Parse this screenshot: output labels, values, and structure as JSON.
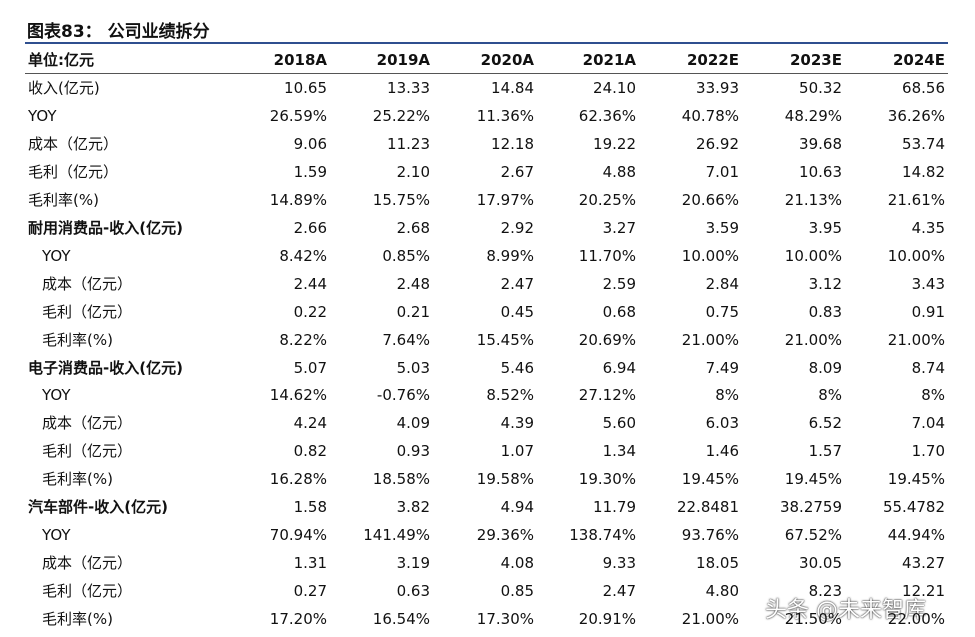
{
  "header": {
    "title": "图表83：  公司业绩拆分"
  },
  "table": {
    "header": [
      "单位:亿元",
      "2018A",
      "2019A",
      "2020A",
      "2021A",
      "2022E",
      "2023E",
      "2024E"
    ],
    "summary_rows": [
      [
        "收入(亿元)",
        "10.65",
        "13.33",
        "14.84",
        "24.10",
        "33.93",
        "50.32",
        "68.56"
      ],
      [
        "YOY",
        "26.59%",
        "25.22%",
        "11.36%",
        "62.36%",
        "40.78%",
        "48.29%",
        "36.26%"
      ],
      [
        "成本（亿元）",
        "9.06",
        "11.23",
        "12.18",
        "19.22",
        "26.92",
        "39.68",
        "53.74"
      ],
      [
        "毛利（亿元）",
        "1.59",
        "2.10",
        "2.67",
        "4.88",
        "7.01",
        "10.63",
        "14.82"
      ],
      [
        "毛利率(%)",
        "14.89%",
        "15.75%",
        "17.97%",
        "20.25%",
        "20.66%",
        "21.13%",
        "21.61%"
      ]
    ],
    "segments": [
      {
        "row": [
          "耐用消费品-收入(亿元)",
          "2.66",
          "2.68",
          "2.92",
          "3.27",
          "3.59",
          "3.95",
          "4.35"
        ],
        "sub_rows": [
          [
            "YOY",
            "8.42%",
            "0.85%",
            "8.99%",
            "11.70%",
            "10.00%",
            "10.00%",
            "10.00%"
          ],
          [
            "成本（亿元）",
            "2.44",
            "2.48",
            "2.47",
            "2.59",
            "2.84",
            "3.12",
            "3.43"
          ],
          [
            "毛利（亿元）",
            "0.22",
            "0.21",
            "0.45",
            "0.68",
            "0.75",
            "0.83",
            "0.91"
          ],
          [
            "毛利率(%)",
            "8.22%",
            "7.64%",
            "15.45%",
            "20.69%",
            "21.00%",
            "21.00%",
            "21.00%"
          ]
        ]
      },
      {
        "row": [
          "电子消费品-收入(亿元)",
          "5.07",
          "5.03",
          "5.46",
          "6.94",
          "7.49",
          "8.09",
          "8.74"
        ],
        "sub_rows": [
          [
            "YOY",
            "14.62%",
            "-0.76%",
            "8.52%",
            "27.12%",
            "8%",
            "8%",
            "8%"
          ],
          [
            "成本（亿元）",
            "4.24",
            "4.09",
            "4.39",
            "5.60",
            "6.03",
            "6.52",
            "7.04"
          ],
          [
            "毛利（亿元）",
            "0.82",
            "0.93",
            "1.07",
            "1.34",
            "1.46",
            "1.57",
            "1.70"
          ],
          [
            "毛利率(%)",
            "16.28%",
            "18.58%",
            "19.58%",
            "19.30%",
            "19.45%",
            "19.45%",
            "19.45%"
          ]
        ]
      },
      {
        "row": [
          "汽车部件-收入(亿元)",
          "1.58",
          "3.82",
          "4.94",
          "11.79",
          "22.8481",
          "38.2759",
          "55.4782"
        ],
        "sub_rows": [
          [
            "YOY",
            "70.94%",
            "141.49%",
            "29.36%",
            "138.74%",
            "93.76%",
            "67.52%",
            "44.94%"
          ],
          [
            "成本（亿元）",
            "1.31",
            "3.19",
            "4.08",
            "9.33",
            "18.05",
            "30.05",
            "43.27"
          ],
          [
            "毛利（亿元）",
            "0.27",
            "0.63",
            "0.85",
            "2.47",
            "4.80",
            "8.23",
            "12.21"
          ],
          [
            "毛利率(%)",
            "17.20%",
            "16.54%",
            "17.30%",
            "20.91%",
            "21.00%",
            "21.50%",
            "22.00%"
          ]
        ]
      }
    ]
  },
  "watermark": "头条 @未来智库"
}
